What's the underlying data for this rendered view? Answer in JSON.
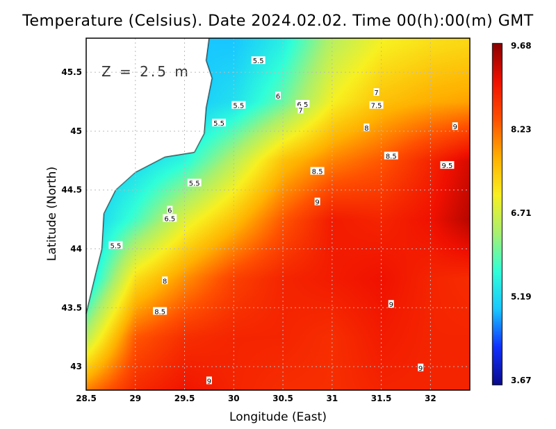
{
  "title": "Temperature (Celsius). Date 2024.02.02. Time 00(h):00(m) GMT",
  "chart_data": {
    "type": "heatmap",
    "xlabel": "Longitude (East)",
    "ylabel": "Latitude (North)",
    "xlim": [
      28.5,
      32.4
    ],
    "ylim": [
      42.8,
      45.79
    ],
    "xticks": [
      "28.5",
      "29",
      "29.5",
      "30",
      "30.5",
      "31",
      "31.5",
      "32"
    ],
    "yticks": [
      "43",
      "43.5",
      "44",
      "44.5",
      "45",
      "45.5"
    ],
    "grid": true,
    "annotation": "Z = 2.5 m",
    "grid_lon": [
      28.5,
      29,
      29.5,
      30,
      30.5,
      31,
      31.5,
      32,
      32.5
    ],
    "grid_lat": [
      45.75,
      45.25,
      44.75,
      44.25,
      43.75,
      43.25,
      42.75
    ],
    "z": [
      [
        null,
        null,
        null,
        5.0,
        5.5,
        6.5,
        7.0,
        7.2,
        7.3
      ],
      [
        null,
        null,
        null,
        5.3,
        6.0,
        7.0,
        7.5,
        7.7,
        7.8
      ],
      [
        5.0,
        5.2,
        5.6,
        6.5,
        7.5,
        8.0,
        8.3,
        8.8,
        9.3
      ],
      [
        5.0,
        5.8,
        6.8,
        7.5,
        8.3,
        8.9,
        8.8,
        9.0,
        9.5
      ],
      [
        5.2,
        7.2,
        7.9,
        8.5,
        8.8,
        8.9,
        9.0,
        8.8,
        8.7
      ],
      [
        6.5,
        8.3,
        8.7,
        8.8,
        8.8,
        8.7,
        8.9,
        8.8,
        8.8
      ],
      [
        8.2,
        8.8,
        9.0,
        8.8,
        8.7,
        8.7,
        8.8,
        8.8,
        8.8
      ]
    ],
    "contour_labels": [
      {
        "text": "5.5",
        "lon": 30.25,
        "lat": 45.6
      },
      {
        "text": "6",
        "lon": 30.45,
        "lat": 45.3
      },
      {
        "text": "5.5",
        "lon": 30.05,
        "lat": 45.22
      },
      {
        "text": "5.5",
        "lon": 29.85,
        "lat": 45.07
      },
      {
        "text": "6.5",
        "lon": 30.7,
        "lat": 45.23
      },
      {
        "text": "7",
        "lon": 30.68,
        "lat": 45.18
      },
      {
        "text": "7",
        "lon": 31.45,
        "lat": 45.33
      },
      {
        "text": "7.5",
        "lon": 31.45,
        "lat": 45.22
      },
      {
        "text": "8",
        "lon": 31.35,
        "lat": 45.03
      },
      {
        "text": "9",
        "lon": 32.25,
        "lat": 45.04
      },
      {
        "text": "8.5",
        "lon": 31.6,
        "lat": 44.79
      },
      {
        "text": "9.5",
        "lon": 32.17,
        "lat": 44.71
      },
      {
        "text": "8.5",
        "lon": 30.85,
        "lat": 44.66
      },
      {
        "text": "5.5",
        "lon": 29.6,
        "lat": 44.56
      },
      {
        "text": "9",
        "lon": 30.85,
        "lat": 44.4
      },
      {
        "text": "6",
        "lon": 29.35,
        "lat": 44.33
      },
      {
        "text": "6.5",
        "lon": 29.35,
        "lat": 44.26
      },
      {
        "text": "5.5",
        "lon": 28.8,
        "lat": 44.03
      },
      {
        "text": "8",
        "lon": 29.3,
        "lat": 43.73
      },
      {
        "text": "9",
        "lon": 31.6,
        "lat": 43.53
      },
      {
        "text": "8.5",
        "lon": 29.25,
        "lat": 43.47
      },
      {
        "text": "9",
        "lon": 31.9,
        "lat": 42.99
      },
      {
        "text": "9",
        "lon": 29.75,
        "lat": 42.88
      }
    ],
    "colorbar": {
      "min": 3.67,
      "max": 9.68,
      "ticks": [
        "9.68",
        "8.23",
        "6.71",
        "5.19",
        "3.67"
      ],
      "colors": [
        "#0a0a8c",
        "#1030ff",
        "#18c8ff",
        "#30ffd8",
        "#a8f070",
        "#f8f020",
        "#ffb000",
        "#ff5000",
        "#f01000",
        "#8a0000"
      ]
    }
  }
}
